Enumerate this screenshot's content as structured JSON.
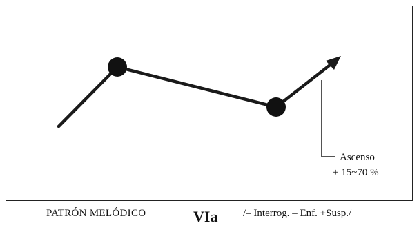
{
  "annotation": {
    "line1": "Ascenso",
    "line2": "+ 15~70 %"
  },
  "caption": {
    "title": "PATRÓN MELÓDICO",
    "code": "VIa",
    "tags": "/– Interrog. – Enf. +Susp./"
  },
  "colors": {
    "line": "#1a1a1a",
    "frame": "#222222"
  }
}
